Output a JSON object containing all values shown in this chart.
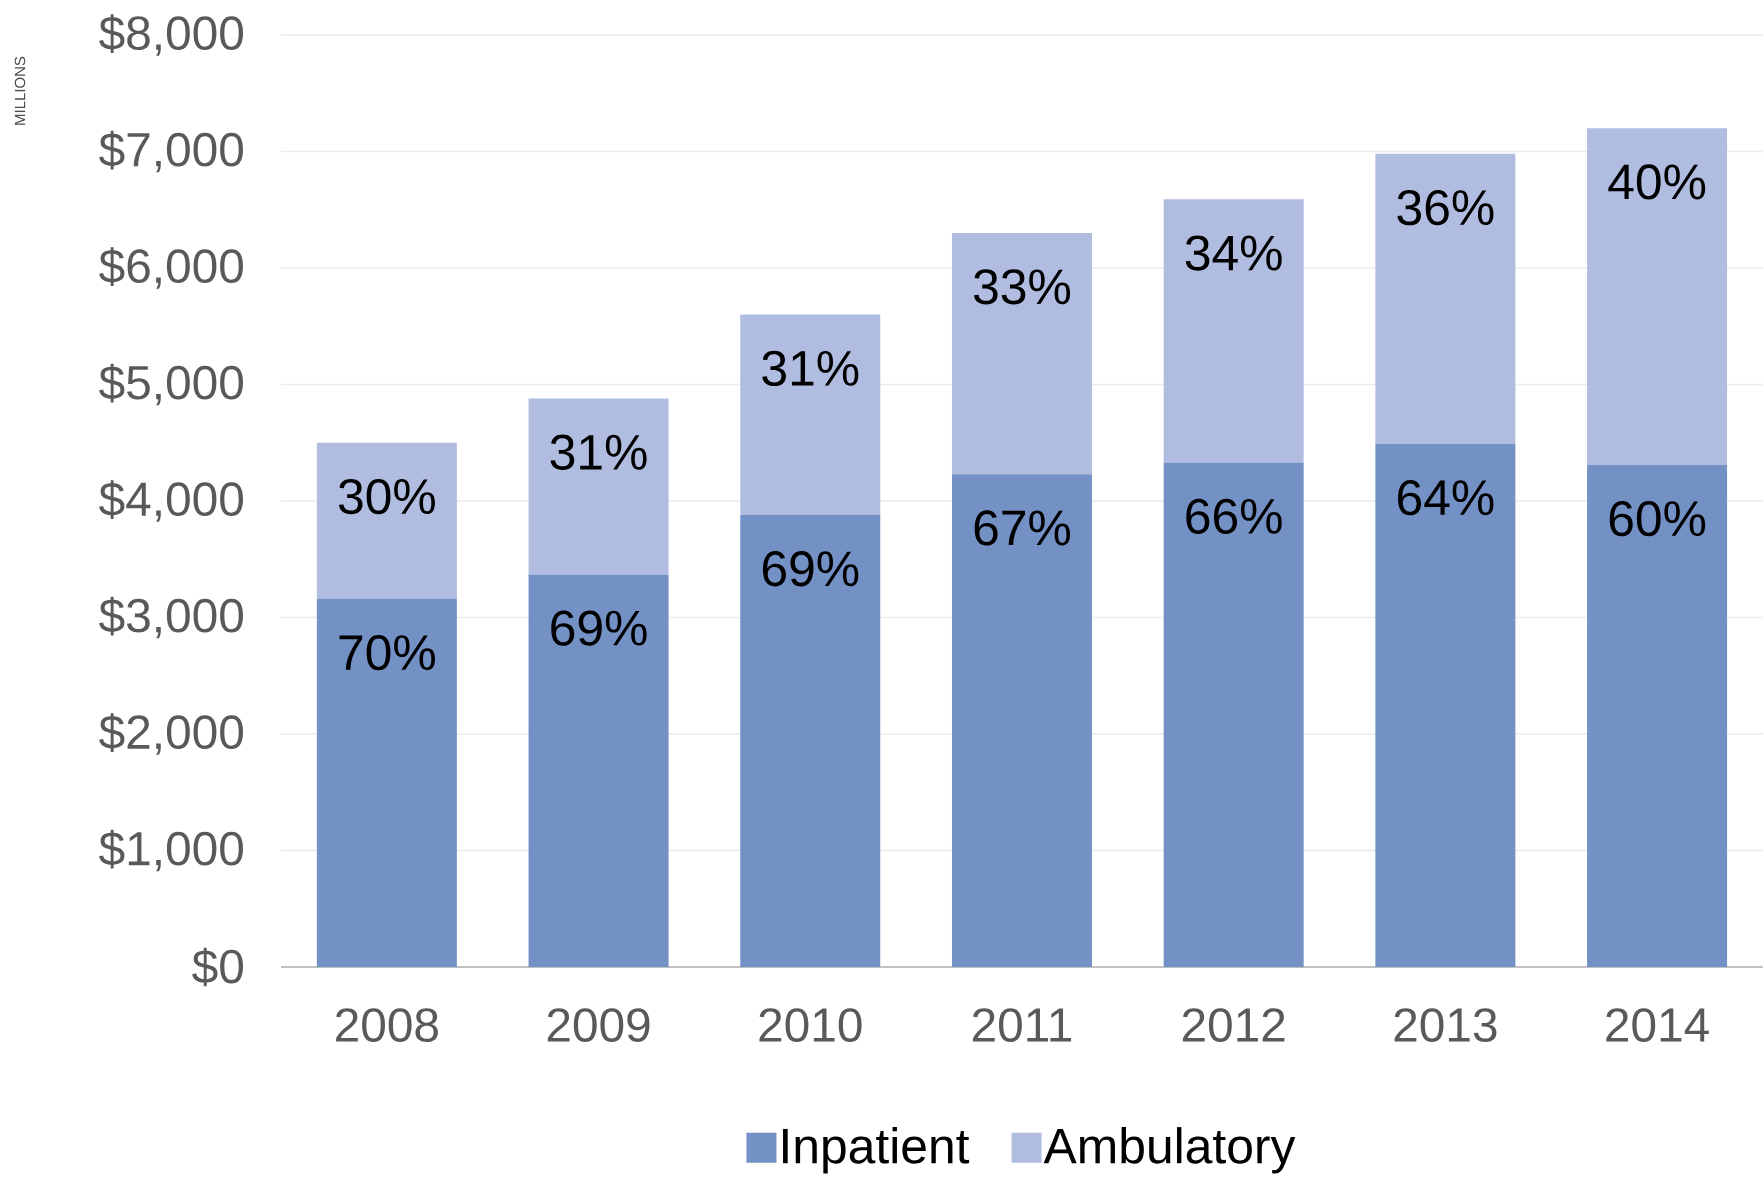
{
  "chart_data": {
    "type": "bar",
    "stacked": true,
    "ylabel": "MILLIONS",
    "categories": [
      "2008",
      "2009",
      "2010",
      "2011",
      "2012",
      "2013",
      "2014"
    ],
    "series": [
      {
        "name": "Inpatient",
        "color": "#7391c4",
        "values": [
          3160,
          3370,
          3880,
          4230,
          4330,
          4490,
          4310
        ]
      },
      {
        "name": "Ambulatory",
        "color": "#b0bde0",
        "values": [
          1340,
          1510,
          1720,
          2070,
          2260,
          2490,
          2890
        ]
      }
    ],
    "annotations": [
      "70%",
      "69%",
      "69%",
      "67%",
      "66%",
      "64%",
      "60%",
      "30%",
      "31%",
      "31%",
      "33%",
      "34%",
      "36%",
      "40%"
    ],
    "ylim": [
      0,
      8000
    ],
    "yticks": [
      {
        "value": 0,
        "label": "$0"
      },
      {
        "value": 1000,
        "label": "$1,000"
      },
      {
        "value": 2000,
        "label": "$2,000"
      },
      {
        "value": 3000,
        "label": "$3,000"
      },
      {
        "value": 4000,
        "label": "$4,000"
      },
      {
        "value": 5000,
        "label": "$5,000"
      },
      {
        "value": 6000,
        "label": "$6,000"
      },
      {
        "value": 7000,
        "label": "$7,000"
      },
      {
        "value": 8000,
        "label": "$8,000"
      }
    ],
    "grid": "y",
    "legend": "bottom"
  }
}
